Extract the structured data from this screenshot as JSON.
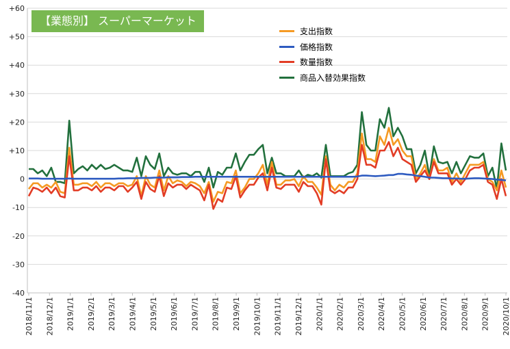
{
  "chart_data": {
    "type": "line",
    "title": "【業態別】 スーパーマーケット",
    "ylim": [
      -40,
      60
    ],
    "yticks": [
      "-40",
      "-30",
      "-20",
      "-10",
      "0",
      "+10",
      "+20",
      "+30",
      "+40",
      "+50",
      "+60"
    ],
    "grid": "horizontal",
    "legend_position": "top-right",
    "date_labels": [
      "2018/11/1",
      "2018/12/1",
      "2019/1/1",
      "2019/2/1",
      "2019/3/1",
      "2019/4/1",
      "2019/5/1",
      "2019/6/1",
      "2019/7/1",
      "2019/8/1",
      "2019/9/1",
      "2019/10/1",
      "2019/11/1",
      "2019/12/1",
      "2020/1/1",
      "2020/2/1",
      "2020/3/1",
      "2020/4/1",
      "2020/5/1",
      "2020/6/1",
      "2020/7/1",
      "2020/8/1",
      "2020/9/1",
      "2020/10/1"
    ],
    "series": [
      {
        "name": "支出指数",
        "color": "#f59a23",
        "values": [
          -3.5,
          -1.5,
          -1.5,
          -3,
          -2,
          -3,
          -1,
          -4.5,
          -5,
          11,
          -2,
          -2,
          -1.5,
          -1.5,
          -2.5,
          -1,
          -3,
          -1.5,
          -1.5,
          -2.5,
          -1.5,
          -1.5,
          -2.5,
          -2,
          1,
          -6,
          1,
          -2,
          -3,
          3,
          -4,
          1,
          -1.5,
          -0.5,
          -1,
          -2.5,
          -1,
          -1.5,
          -2.5,
          -5,
          -1,
          -8,
          -4.5,
          -5,
          -1,
          -1.5,
          3,
          -5,
          -3,
          0,
          0,
          2,
          5,
          -2,
          6,
          -2,
          -2,
          -0.5,
          -0.5,
          0,
          -2.5,
          1,
          -1,
          -1,
          -3,
          -5.5,
          8,
          -2,
          -4,
          -2,
          -3,
          -1,
          -1,
          2,
          16,
          7,
          7,
          6,
          15,
          12,
          18,
          12,
          14,
          10,
          8,
          8,
          0,
          2,
          5,
          0,
          7,
          3,
          3,
          4,
          -1,
          2,
          -1,
          2,
          5,
          5,
          5,
          6,
          0,
          -1,
          -4,
          3,
          -3
        ]
      },
      {
        "name": "価格指数",
        "color": "#2e5bc0",
        "values": [
          0.2,
          0.2,
          0.2,
          0.1,
          0.1,
          0.1,
          0.1,
          0.1,
          0.1,
          0.2,
          0.1,
          0.1,
          0.1,
          0.1,
          0.1,
          0.1,
          0.1,
          0.1,
          0.1,
          0.1,
          0.2,
          0.2,
          0.3,
          0.3,
          0.3,
          0.4,
          0.4,
          0.4,
          0.5,
          0.5,
          0.5,
          0.6,
          0.6,
          0.6,
          0.7,
          0.7,
          0.7,
          0.8,
          0.8,
          0.8,
          0.8,
          0.8,
          0.8,
          0.8,
          0.8,
          0.8,
          0.8,
          0.8,
          0.8,
          0.8,
          0.8,
          0.8,
          0.8,
          0.8,
          0.8,
          0.8,
          0.8,
          0.8,
          0.8,
          0.8,
          0.8,
          0.8,
          0.8,
          0.8,
          0.8,
          0.8,
          0.8,
          0.8,
          0.8,
          0.8,
          0.8,
          0.8,
          0.8,
          0.9,
          1.2,
          1.2,
          1.1,
          1,
          1.1,
          1.2,
          1.4,
          1.4,
          1.8,
          1.8,
          1.6,
          1.5,
          1.2,
          1,
          0.8,
          0.5,
          0.5,
          0.4,
          0.3,
          0.3,
          0.2,
          0.2,
          0.1,
          0.1,
          0.2,
          0.3,
          0.3,
          0.2,
          0.1,
          0,
          -0.2,
          -0.3,
          -0.5
        ]
      },
      {
        "name": "数量指数",
        "color": "#e23c25",
        "values": [
          -6,
          -3,
          -3.5,
          -4.5,
          -3,
          -5,
          -3,
          -6,
          -6.5,
          8,
          -4,
          -4,
          -3,
          -3,
          -4,
          -2.5,
          -4.5,
          -3,
          -3,
          -4,
          -2.5,
          -2.5,
          -4.5,
          -3,
          -1,
          -7,
          -1,
          -3.5,
          -4.5,
          1,
          -6,
          -1.5,
          -3,
          -2,
          -2,
          -3.5,
          -2,
          -3,
          -4,
          -7.5,
          -2,
          -10.5,
          -7,
          -8,
          -3,
          -3.5,
          1,
          -6.5,
          -4,
          -2,
          -2,
          0.5,
          2,
          -4,
          4,
          -3,
          -3.5,
          -2,
          -2,
          -2,
          -4.5,
          -1,
          -2.5,
          -2.5,
          -5,
          -9,
          7,
          -4,
          -5,
          -4,
          -5,
          -3,
          -3,
          0,
          12,
          5,
          5,
          4,
          10,
          10,
          13,
          8,
          11,
          7,
          6,
          5,
          -1,
          1,
          3,
          0,
          6,
          2,
          2,
          2,
          -2,
          0,
          -2,
          0,
          3,
          4,
          4,
          5,
          -1,
          -2,
          -7,
          0,
          -6
        ]
      },
      {
        "name": "商品入替効果指数",
        "color": "#22703d",
        "values": [
          3.5,
          3.5,
          2,
          3,
          1,
          4,
          -1,
          -1,
          -1.5,
          20.5,
          2,
          3.5,
          4.5,
          3,
          5,
          3.5,
          5,
          3.5,
          4,
          5,
          4,
          3,
          3,
          2.5,
          7.5,
          1,
          8,
          5,
          3.5,
          9,
          1,
          4,
          2,
          1.5,
          2,
          2,
          1,
          2.5,
          2.5,
          -1,
          4,
          -3,
          2.5,
          1.5,
          4,
          4,
          9,
          3,
          6,
          8.5,
          8.5,
          10.5,
          12,
          2,
          7.5,
          2,
          2,
          1,
          1,
          1,
          3,
          0.5,
          1.5,
          1,
          2,
          0.5,
          12,
          1,
          1,
          1,
          1,
          2,
          2.5,
          5,
          23.5,
          12,
          10,
          10,
          21,
          18,
          25,
          15,
          18,
          15,
          10.5,
          10.5,
          2,
          5,
          10,
          1,
          11.5,
          6,
          5.5,
          6,
          2,
          6,
          2,
          5,
          8,
          7.5,
          7.5,
          9,
          1,
          4,
          -3.5,
          12.5,
          3
        ]
      }
    ]
  }
}
